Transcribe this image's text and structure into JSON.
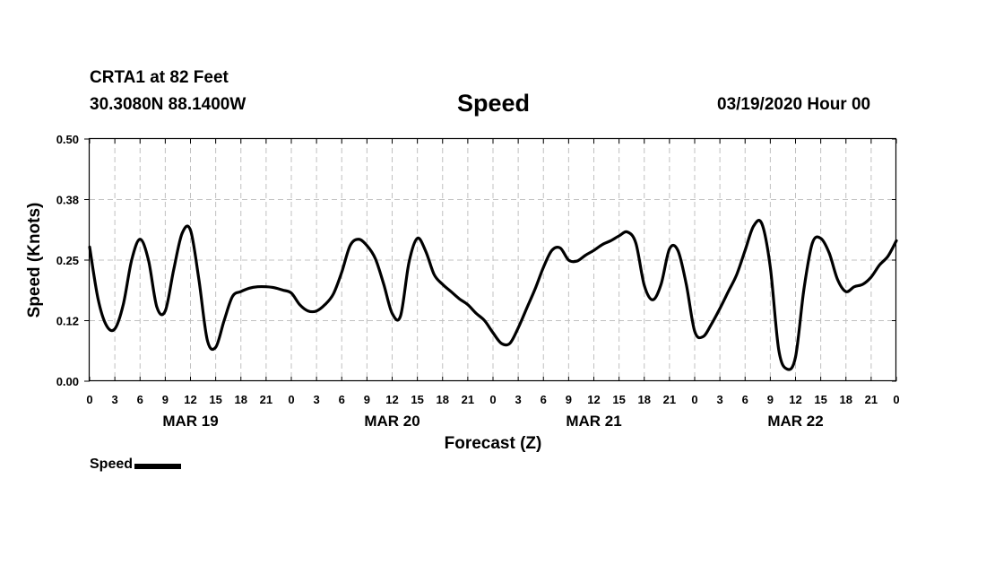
{
  "header": {
    "station": "CRTA1 at 82 Feet",
    "coords": "30.3080N 88.1400W",
    "title": "Speed",
    "run": "03/19/2020 Hour 00"
  },
  "legend": {
    "label": "Speed"
  },
  "colors": {
    "line": "#000000",
    "grid": "#c0c0c0"
  },
  "chart_data": {
    "type": "line",
    "title": "Speed",
    "xlabel": "Forecast (Z)",
    "ylabel": "Speed (Knots)",
    "ylim": [
      0,
      0.5
    ],
    "y_ticks": [
      "0.00",
      "0.12",
      "0.25",
      "0.38",
      "0.50"
    ],
    "xlim_hours": [
      0,
      96
    ],
    "x_tick_labels": [
      "0",
      "3",
      "6",
      "9",
      "12",
      "15",
      "18",
      "21",
      "0",
      "3",
      "6",
      "9",
      "12",
      "15",
      "18",
      "21",
      "0",
      "3",
      "6",
      "9",
      "12",
      "15",
      "18",
      "21",
      "0",
      "3",
      "6",
      "9",
      "12",
      "15",
      "18",
      "21",
      "0"
    ],
    "day_labels": [
      {
        "label": "MAR 19",
        "hour": 12
      },
      {
        "label": "MAR 20",
        "hour": 36
      },
      {
        "label": "MAR 21",
        "hour": 60
      },
      {
        "label": "MAR 22",
        "hour": 84
      }
    ],
    "grid": true,
    "series": [
      {
        "name": "Speed",
        "x": [
          0,
          1,
          2,
          3,
          4,
          5,
          6,
          7,
          8,
          9,
          10,
          11,
          12,
          13,
          14,
          15,
          16,
          17,
          18,
          19,
          20,
          21,
          22,
          23,
          24,
          25,
          26,
          27,
          28,
          29,
          30,
          31,
          32,
          33,
          34,
          35,
          36,
          37,
          38,
          39,
          40,
          41,
          42,
          43,
          44,
          45,
          46,
          47,
          48,
          49,
          50,
          51,
          52,
          53,
          54,
          55,
          56,
          57,
          58,
          59,
          60,
          61,
          62,
          63,
          64,
          65,
          66,
          67,
          68,
          69,
          70,
          71,
          72,
          73,
          74,
          75,
          76,
          77,
          78,
          79,
          80,
          81,
          82,
          83,
          84,
          85,
          86,
          87,
          88,
          89,
          90,
          91,
          92,
          93,
          94,
          95,
          96
        ],
        "values": [
          0.277,
          0.17,
          0.115,
          0.108,
          0.158,
          0.25,
          0.293,
          0.25,
          0.153,
          0.145,
          0.23,
          0.305,
          0.312,
          0.21,
          0.085,
          0.07,
          0.125,
          0.175,
          0.185,
          0.192,
          0.195,
          0.195,
          0.193,
          0.188,
          0.182,
          0.158,
          0.145,
          0.145,
          0.158,
          0.18,
          0.225,
          0.28,
          0.293,
          0.28,
          0.253,
          0.2,
          0.14,
          0.135,
          0.245,
          0.295,
          0.268,
          0.22,
          0.2,
          0.185,
          0.17,
          0.158,
          0.14,
          0.125,
          0.1,
          0.078,
          0.078,
          0.11,
          0.15,
          0.19,
          0.235,
          0.27,
          0.275,
          0.25,
          0.248,
          0.26,
          0.27,
          0.282,
          0.29,
          0.3,
          0.308,
          0.285,
          0.198,
          0.168,
          0.2,
          0.273,
          0.27,
          0.2,
          0.103,
          0.092,
          0.118,
          0.15,
          0.185,
          0.22,
          0.27,
          0.32,
          0.325,
          0.235,
          0.065,
          0.025,
          0.05,
          0.19,
          0.285,
          0.295,
          0.265,
          0.21,
          0.185,
          0.195,
          0.2,
          0.215,
          0.24,
          0.258,
          0.29
        ]
      }
    ]
  }
}
